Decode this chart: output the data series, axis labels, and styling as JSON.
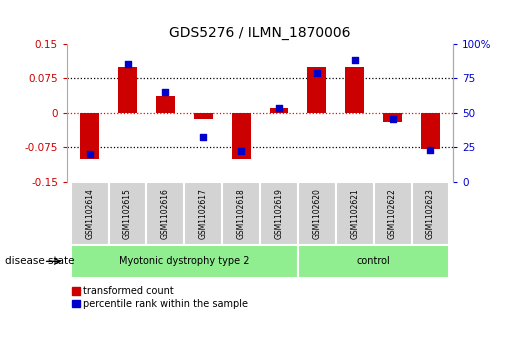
{
  "title": "GDS5276 / ILMN_1870006",
  "samples": [
    "GSM1102614",
    "GSM1102615",
    "GSM1102616",
    "GSM1102617",
    "GSM1102618",
    "GSM1102619",
    "GSM1102620",
    "GSM1102621",
    "GSM1102622",
    "GSM1102623"
  ],
  "red_values": [
    -0.1,
    0.1,
    0.035,
    -0.015,
    -0.1,
    0.01,
    0.1,
    0.1,
    -0.02,
    -0.08
  ],
  "blue_values": [
    20,
    85,
    65,
    32,
    22,
    53,
    79,
    88,
    45,
    23
  ],
  "groups": [
    {
      "label": "Myotonic dystrophy type 2",
      "start": 0,
      "end": 5,
      "color": "#90EE90"
    },
    {
      "label": "control",
      "start": 6,
      "end": 9,
      "color": "#90EE90"
    }
  ],
  "ylim_left": [
    -0.15,
    0.15
  ],
  "ylim_right": [
    0,
    100
  ],
  "yticks_left": [
    -0.15,
    -0.075,
    0,
    0.075,
    0.15
  ],
  "yticks_right": [
    0,
    25,
    50,
    75,
    100
  ],
  "ytick_labels_left": [
    "-0.15",
    "-0.075",
    "0",
    "0.075",
    "0.15"
  ],
  "ytick_labels_right": [
    "0",
    "25",
    "50",
    "75",
    "100%"
  ],
  "hlines_dotted": [
    0.075,
    -0.075
  ],
  "hline_zero_color": "red",
  "red_color": "#CC0000",
  "blue_color": "#0000CC",
  "bar_width": 0.5,
  "label_red": "transformed count",
  "label_blue": "percentile rank within the sample",
  "disease_state_label": "disease state",
  "sample_box_color": "#D3D3D3",
  "figure_width": 5.15,
  "figure_height": 3.63,
  "dpi": 100
}
